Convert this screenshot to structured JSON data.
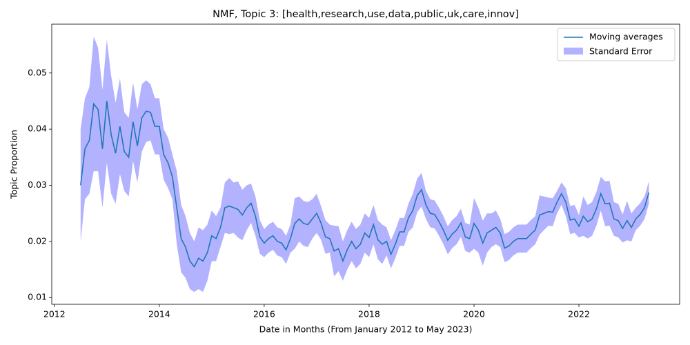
{
  "chart_data": {
    "type": "line",
    "title": "NMF, Topic 3: [health,research,use,data,public,uk,care,innov]",
    "x_label": "Date in Months (From January 2012 to May 2023)",
    "y_label": "Topic Proportion",
    "x": [
      2012.5,
      2012.583,
      2012.667,
      2012.75,
      2012.833,
      2012.917,
      2013,
      2013.083,
      2013.167,
      2013.25,
      2013.333,
      2013.417,
      2013.5,
      2013.583,
      2013.667,
      2013.75,
      2013.833,
      2013.917,
      2014,
      2014.083,
      2014.167,
      2014.25,
      2014.333,
      2014.417,
      2014.5,
      2014.583,
      2014.667,
      2014.75,
      2014.833,
      2014.917,
      2015,
      2015.083,
      2015.167,
      2015.25,
      2015.333,
      2015.417,
      2015.5,
      2015.583,
      2015.667,
      2015.75,
      2015.833,
      2015.917,
      2016,
      2016.083,
      2016.167,
      2016.25,
      2016.333,
      2016.417,
      2016.5,
      2016.583,
      2016.667,
      2016.75,
      2016.833,
      2016.917,
      2017,
      2017.083,
      2017.167,
      2017.25,
      2017.333,
      2017.417,
      2017.5,
      2017.583,
      2017.667,
      2017.75,
      2017.833,
      2017.917,
      2018,
      2018.083,
      2018.167,
      2018.25,
      2018.333,
      2018.417,
      2018.5,
      2018.583,
      2018.667,
      2018.75,
      2018.833,
      2018.917,
      2019,
      2019.083,
      2019.167,
      2019.25,
      2019.333,
      2019.417,
      2019.5,
      2019.583,
      2019.667,
      2019.75,
      2019.833,
      2019.917,
      2020,
      2020.083,
      2020.167,
      2020.25,
      2020.333,
      2020.417,
      2020.5,
      2020.583,
      2020.667,
      2020.75,
      2020.833,
      2020.917,
      2021,
      2021.083,
      2021.167,
      2021.25,
      2021.333,
      2021.417,
      2021.5,
      2021.583,
      2021.667,
      2021.75,
      2021.833,
      2021.917,
      2022,
      2022.083,
      2022.167,
      2022.25,
      2022.333,
      2022.417,
      2022.5,
      2022.583,
      2022.667,
      2022.75,
      2022.833,
      2022.917,
      2023,
      2023.083,
      2023.167,
      2023.25,
      2023.333
    ],
    "series": [
      {
        "name": "Moving averages",
        "color": "#1f77b4",
        "values": [
          0.03,
          0.0365,
          0.038,
          0.0445,
          0.0435,
          0.0365,
          0.045,
          0.039,
          0.0357,
          0.0405,
          0.036,
          0.035,
          0.0413,
          0.037,
          0.042,
          0.0432,
          0.043,
          0.0405,
          0.0405,
          0.0355,
          0.034,
          0.0315,
          0.026,
          0.0205,
          0.019,
          0.0165,
          0.0155,
          0.017,
          0.0165,
          0.018,
          0.021,
          0.0205,
          0.0225,
          0.026,
          0.0263,
          0.026,
          0.0257,
          0.0247,
          0.026,
          0.0268,
          0.0245,
          0.0208,
          0.0197,
          0.0205,
          0.021,
          0.02,
          0.0197,
          0.0185,
          0.0205,
          0.0232,
          0.024,
          0.0232,
          0.023,
          0.024,
          0.025,
          0.0233,
          0.0208,
          0.0205,
          0.0183,
          0.0187,
          0.0165,
          0.0185,
          0.02,
          0.0187,
          0.0195,
          0.0215,
          0.0207,
          0.023,
          0.0203,
          0.0195,
          0.02,
          0.0177,
          0.0195,
          0.0217,
          0.0217,
          0.0242,
          0.0255,
          0.0282,
          0.0292,
          0.0265,
          0.025,
          0.0248,
          0.0235,
          0.022,
          0.0202,
          0.0213,
          0.022,
          0.0233,
          0.0208,
          0.0205,
          0.0232,
          0.022,
          0.0197,
          0.0215,
          0.022,
          0.0225,
          0.0215,
          0.0188,
          0.0192,
          0.02,
          0.0205,
          0.0205,
          0.0205,
          0.0213,
          0.022,
          0.0247,
          0.025,
          0.0253,
          0.0252,
          0.027,
          0.0285,
          0.027,
          0.0238,
          0.024,
          0.0227,
          0.0245,
          0.0235,
          0.024,
          0.0258,
          0.0285,
          0.0267,
          0.0268,
          0.024,
          0.0237,
          0.0223,
          0.0237,
          0.0225,
          0.024,
          0.0248,
          0.026,
          0.0287
        ]
      }
    ],
    "band": {
      "name": "Standard Error",
      "color": "#b2b2ff",
      "errors": [
        0.01,
        0.009,
        0.0095,
        0.012,
        0.011,
        0.0105,
        0.011,
        0.0105,
        0.009,
        0.0085,
        0.007,
        0.007,
        0.007,
        0.0065,
        0.006,
        0.0055,
        0.005,
        0.005,
        0.005,
        0.0045,
        0.0045,
        0.004,
        0.0065,
        0.006,
        0.0055,
        0.005,
        0.0045,
        0.0055,
        0.0055,
        0.005,
        0.0045,
        0.004,
        0.0035,
        0.0045,
        0.005,
        0.0045,
        0.005,
        0.0045,
        0.004,
        0.0035,
        0.0035,
        0.003,
        0.0025,
        0.0025,
        0.0025,
        0.0025,
        0.0025,
        0.0025,
        0.0025,
        0.0045,
        0.004,
        0.004,
        0.004,
        0.0035,
        0.0035,
        0.003,
        0.003,
        0.0025,
        0.0045,
        0.004,
        0.0035,
        0.0035,
        0.0035,
        0.0035,
        0.0035,
        0.0035,
        0.0035,
        0.0035,
        0.0035,
        0.0035,
        0.0025,
        0.0025,
        0.0025,
        0.0025,
        0.0025,
        0.0025,
        0.003,
        0.003,
        0.003,
        0.0025,
        0.0025,
        0.0025,
        0.0025,
        0.0025,
        0.0025,
        0.0025,
        0.0025,
        0.0025,
        0.0025,
        0.0025,
        0.0045,
        0.004,
        0.004,
        0.0035,
        0.003,
        0.003,
        0.0025,
        0.0025,
        0.0025,
        0.0025,
        0.0025,
        0.0025,
        0.0025,
        0.0025,
        0.0025,
        0.0035,
        0.003,
        0.0025,
        0.0025,
        0.002,
        0.002,
        0.0025,
        0.0025,
        0.0025,
        0.002,
        0.0035,
        0.003,
        0.003,
        0.003,
        0.003,
        0.004,
        0.004,
        0.003,
        0.003,
        0.0025,
        0.0035,
        0.0025,
        0.002,
        0.002,
        0.002,
        0.002
      ]
    },
    "xlim": [
      2011.95,
      2023.92
    ],
    "xticks": [
      2012,
      2014,
      2016,
      2018,
      2020,
      2022
    ],
    "ylim": [
      0.0088,
      0.0587
    ],
    "yticks": [
      0.01,
      0.02,
      0.03,
      0.04,
      0.05
    ],
    "legend": "upper right"
  }
}
